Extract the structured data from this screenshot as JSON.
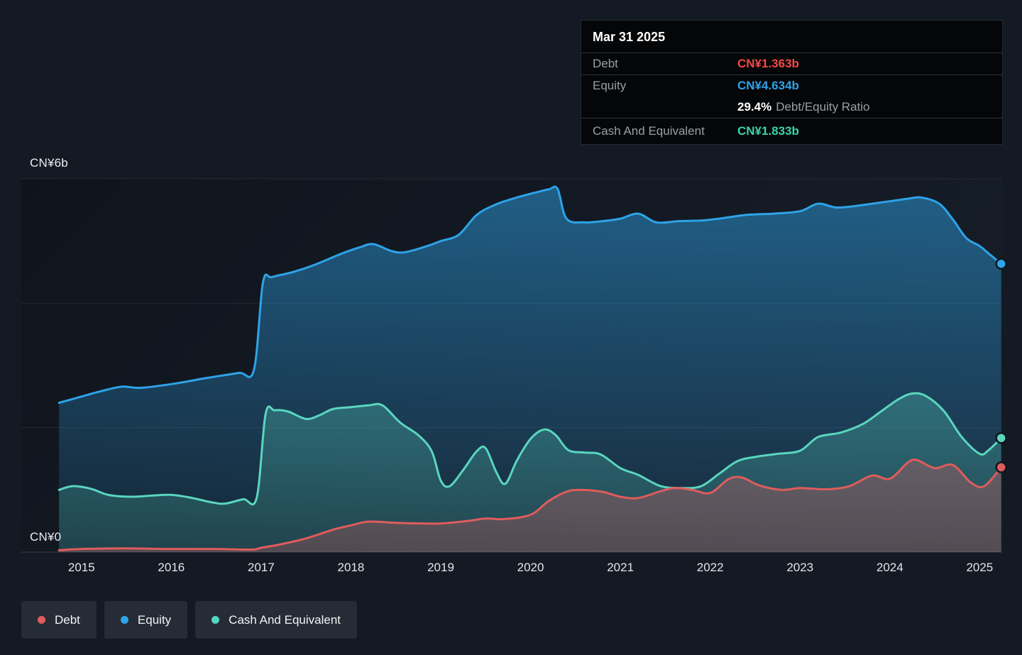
{
  "page": {
    "background": "#141a23"
  },
  "tooltip": {
    "date": "Mar 31 2025",
    "rows": [
      {
        "label": "Debt",
        "value": "CN¥1.363b",
        "color": "#f2494a"
      },
      {
        "label": "Equity",
        "value": "CN¥4.634b",
        "color": "#2ea3e8"
      }
    ],
    "ratio": {
      "value": "29.4%",
      "label": "Debt/Equity Ratio"
    },
    "cash_row": {
      "label": "Cash And Equivalent",
      "value": "CN¥1.833b",
      "color": "#3bd3b1"
    }
  },
  "legend": {
    "items": [
      {
        "label": "Debt",
        "color": "#e05c5c"
      },
      {
        "label": "Equity",
        "color": "#2ea3e8"
      },
      {
        "label": "Cash And Equivalent",
        "color": "#53d6bd"
      }
    ]
  },
  "chart_data": {
    "type": "area",
    "unit": "CN¥ billions",
    "ylabel_top": "CN¥6b",
    "ylabel_bottom": "CN¥0",
    "ylim": [
      0,
      6
    ],
    "xlim": [
      2014.33,
      2025.25
    ],
    "grid_values": [
      0,
      2,
      4,
      6
    ],
    "grid_on": true,
    "legend_position": "bottom-left",
    "x_ticks": [
      "2015",
      "2016",
      "2017",
      "2018",
      "2019",
      "2020",
      "2021",
      "2022",
      "2023",
      "2024",
      "2025"
    ],
    "x_tick_years": [
      2015,
      2016,
      2017,
      2018,
      2019,
      2020,
      2021,
      2022,
      2023,
      2024,
      2025
    ],
    "latest": {
      "date": "Mar 31 2025",
      "debt": 1.363,
      "equity": 4.634,
      "cash": 1.833,
      "debt_equity_ratio_pct": 29.4
    },
    "series": [
      {
        "name": "Equity",
        "color": "#2ea3e8",
        "points": [
          [
            2014.75,
            2.4
          ],
          [
            2015.0,
            2.5
          ],
          [
            2015.2,
            2.58
          ],
          [
            2015.45,
            2.66
          ],
          [
            2015.65,
            2.64
          ],
          [
            2016.0,
            2.7
          ],
          [
            2016.4,
            2.8
          ],
          [
            2016.75,
            2.88
          ],
          [
            2016.92,
            2.93
          ],
          [
            2017.02,
            4.33
          ],
          [
            2017.12,
            4.42
          ],
          [
            2017.35,
            4.5
          ],
          [
            2017.6,
            4.62
          ],
          [
            2017.9,
            4.8
          ],
          [
            2018.1,
            4.9
          ],
          [
            2018.25,
            4.95
          ],
          [
            2018.45,
            4.84
          ],
          [
            2018.6,
            4.82
          ],
          [
            2018.85,
            4.92
          ],
          [
            2019.0,
            5.0
          ],
          [
            2019.2,
            5.1
          ],
          [
            2019.4,
            5.42
          ],
          [
            2019.6,
            5.58
          ],
          [
            2019.8,
            5.68
          ],
          [
            2020.0,
            5.76
          ],
          [
            2020.2,
            5.83
          ],
          [
            2020.3,
            5.84
          ],
          [
            2020.4,
            5.36
          ],
          [
            2020.6,
            5.3
          ],
          [
            2020.8,
            5.32
          ],
          [
            2021.0,
            5.36
          ],
          [
            2021.2,
            5.44
          ],
          [
            2021.4,
            5.3
          ],
          [
            2021.65,
            5.32
          ],
          [
            2021.9,
            5.33
          ],
          [
            2022.1,
            5.36
          ],
          [
            2022.4,
            5.42
          ],
          [
            2022.7,
            5.44
          ],
          [
            2023.0,
            5.48
          ],
          [
            2023.2,
            5.6
          ],
          [
            2023.4,
            5.54
          ],
          [
            2023.6,
            5.56
          ],
          [
            2023.8,
            5.6
          ],
          [
            2024.0,
            5.64
          ],
          [
            2024.2,
            5.68
          ],
          [
            2024.35,
            5.7
          ],
          [
            2024.55,
            5.6
          ],
          [
            2024.7,
            5.35
          ],
          [
            2024.85,
            5.05
          ],
          [
            2025.0,
            4.92
          ],
          [
            2025.1,
            4.8
          ],
          [
            2025.24,
            4.634
          ]
        ]
      },
      {
        "name": "Cash And Equivalent",
        "color": "#5ad6be",
        "points": [
          [
            2014.75,
            1.0
          ],
          [
            2014.9,
            1.06
          ],
          [
            2015.1,
            1.02
          ],
          [
            2015.3,
            0.92
          ],
          [
            2015.55,
            0.89
          ],
          [
            2015.8,
            0.91
          ],
          [
            2016.0,
            0.92
          ],
          [
            2016.2,
            0.88
          ],
          [
            2016.45,
            0.8
          ],
          [
            2016.6,
            0.78
          ],
          [
            2016.8,
            0.85
          ],
          [
            2016.95,
            0.87
          ],
          [
            2017.05,
            2.22
          ],
          [
            2017.15,
            2.28
          ],
          [
            2017.3,
            2.26
          ],
          [
            2017.5,
            2.14
          ],
          [
            2017.65,
            2.2
          ],
          [
            2017.8,
            2.3
          ],
          [
            2018.0,
            2.33
          ],
          [
            2018.2,
            2.36
          ],
          [
            2018.35,
            2.36
          ],
          [
            2018.55,
            2.08
          ],
          [
            2018.75,
            1.88
          ],
          [
            2018.9,
            1.62
          ],
          [
            2019.0,
            1.15
          ],
          [
            2019.1,
            1.06
          ],
          [
            2019.25,
            1.32
          ],
          [
            2019.4,
            1.62
          ],
          [
            2019.5,
            1.67
          ],
          [
            2019.62,
            1.28
          ],
          [
            2019.72,
            1.1
          ],
          [
            2019.85,
            1.48
          ],
          [
            2020.0,
            1.82
          ],
          [
            2020.15,
            1.97
          ],
          [
            2020.28,
            1.88
          ],
          [
            2020.42,
            1.64
          ],
          [
            2020.6,
            1.6
          ],
          [
            2020.78,
            1.57
          ],
          [
            2021.0,
            1.35
          ],
          [
            2021.2,
            1.24
          ],
          [
            2021.45,
            1.06
          ],
          [
            2021.7,
            1.03
          ],
          [
            2021.9,
            1.06
          ],
          [
            2022.1,
            1.26
          ],
          [
            2022.3,
            1.46
          ],
          [
            2022.5,
            1.53
          ],
          [
            2022.75,
            1.58
          ],
          [
            2023.0,
            1.63
          ],
          [
            2023.2,
            1.85
          ],
          [
            2023.45,
            1.92
          ],
          [
            2023.7,
            2.06
          ],
          [
            2023.9,
            2.26
          ],
          [
            2024.1,
            2.46
          ],
          [
            2024.25,
            2.55
          ],
          [
            2024.4,
            2.51
          ],
          [
            2024.6,
            2.27
          ],
          [
            2024.8,
            1.85
          ],
          [
            2025.0,
            1.58
          ],
          [
            2025.1,
            1.64
          ],
          [
            2025.24,
            1.833
          ]
        ]
      },
      {
        "name": "Debt",
        "color": "#e05c5c",
        "points": [
          [
            2014.75,
            0.03
          ],
          [
            2015.0,
            0.05
          ],
          [
            2015.5,
            0.06
          ],
          [
            2016.0,
            0.05
          ],
          [
            2016.5,
            0.05
          ],
          [
            2016.9,
            0.04
          ],
          [
            2017.0,
            0.07
          ],
          [
            2017.2,
            0.12
          ],
          [
            2017.5,
            0.22
          ],
          [
            2017.8,
            0.36
          ],
          [
            2018.0,
            0.43
          ],
          [
            2018.2,
            0.49
          ],
          [
            2018.5,
            0.47
          ],
          [
            2018.8,
            0.46
          ],
          [
            2019.0,
            0.46
          ],
          [
            2019.3,
            0.5
          ],
          [
            2019.5,
            0.54
          ],
          [
            2019.7,
            0.53
          ],
          [
            2020.0,
            0.6
          ],
          [
            2020.2,
            0.82
          ],
          [
            2020.4,
            0.97
          ],
          [
            2020.55,
            1.0
          ],
          [
            2020.8,
            0.97
          ],
          [
            2021.0,
            0.89
          ],
          [
            2021.2,
            0.87
          ],
          [
            2021.45,
            0.98
          ],
          [
            2021.6,
            1.03
          ],
          [
            2021.8,
            1.0
          ],
          [
            2022.0,
            0.95
          ],
          [
            2022.2,
            1.17
          ],
          [
            2022.35,
            1.2
          ],
          [
            2022.55,
            1.07
          ],
          [
            2022.8,
            1.0
          ],
          [
            2023.0,
            1.03
          ],
          [
            2023.3,
            1.01
          ],
          [
            2023.55,
            1.06
          ],
          [
            2023.8,
            1.23
          ],
          [
            2024.0,
            1.18
          ],
          [
            2024.2,
            1.44
          ],
          [
            2024.3,
            1.48
          ],
          [
            2024.5,
            1.35
          ],
          [
            2024.7,
            1.4
          ],
          [
            2024.9,
            1.12
          ],
          [
            2025.05,
            1.06
          ],
          [
            2025.24,
            1.363
          ]
        ]
      }
    ]
  }
}
